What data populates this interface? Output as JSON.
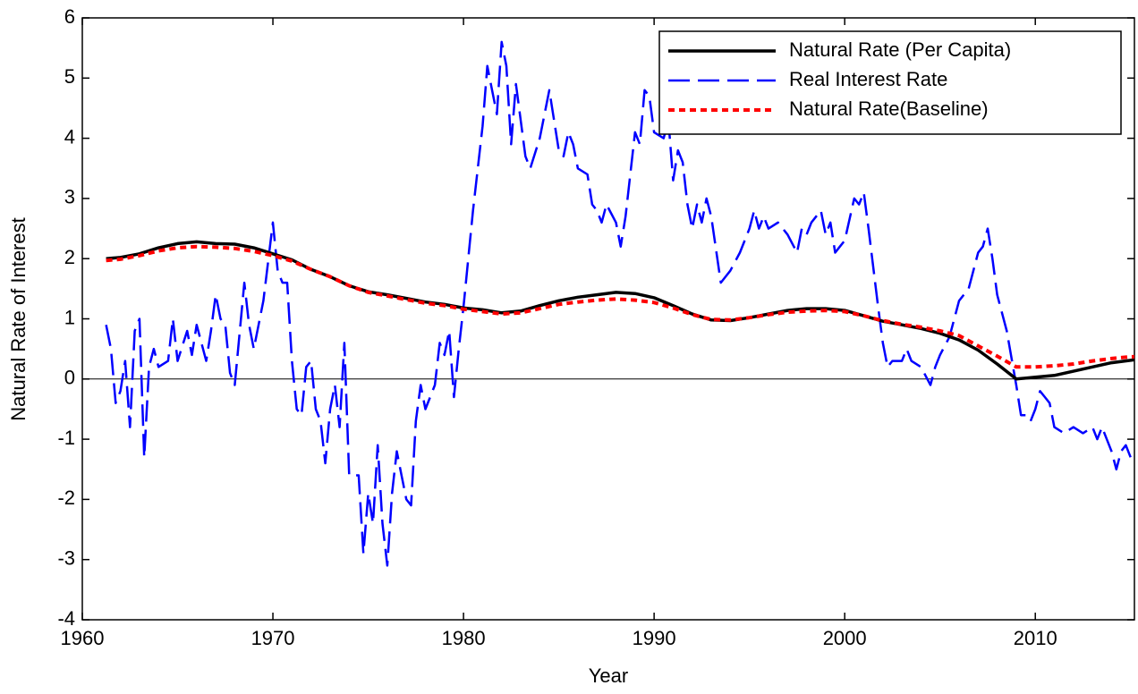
{
  "chart_data": {
    "type": "line",
    "xlabel": "Year",
    "ylabel": "Natural Rate of Interest",
    "xlim": [
      1960,
      2015.2
    ],
    "ylim": [
      -4,
      6
    ],
    "xticks": [
      1960,
      1970,
      1980,
      1990,
      2000,
      2010
    ],
    "yticks": [
      -4,
      -3,
      -2,
      -1,
      0,
      1,
      2,
      3,
      4,
      5,
      6
    ],
    "hline": 0,
    "legend": "upper right",
    "series": [
      {
        "name": "Natural Rate (Per Capita)",
        "color": "#000000",
        "style": "solid",
        "x": [
          1961.25,
          1962,
          1963,
          1964,
          1965,
          1966,
          1967,
          1968,
          1969,
          1970,
          1971,
          1972,
          1973,
          1974,
          1975,
          1976,
          1977,
          1978,
          1979,
          1980,
          1981,
          1982,
          1983,
          1984,
          1985,
          1986,
          1987,
          1988,
          1989,
          1990,
          1991,
          1992,
          1993,
          1994,
          1995,
          1996,
          1997,
          1998,
          1999,
          2000,
          2001,
          2002,
          2003,
          2004,
          2005,
          2006,
          2007,
          2008,
          2009,
          2010,
          2011,
          2012,
          2013,
          2014,
          2015,
          2015.2
        ],
        "values": [
          2.0,
          2.02,
          2.08,
          2.18,
          2.25,
          2.28,
          2.25,
          2.24,
          2.18,
          2.08,
          1.98,
          1.82,
          1.7,
          1.55,
          1.45,
          1.4,
          1.34,
          1.28,
          1.24,
          1.18,
          1.15,
          1.1,
          1.13,
          1.22,
          1.3,
          1.36,
          1.4,
          1.44,
          1.42,
          1.35,
          1.22,
          1.08,
          0.98,
          0.97,
          1.02,
          1.08,
          1.14,
          1.17,
          1.17,
          1.14,
          1.05,
          0.96,
          0.9,
          0.84,
          0.76,
          0.65,
          0.48,
          0.25,
          0.0,
          0.03,
          0.06,
          0.13,
          0.2,
          0.27,
          0.31,
          0.32
        ]
      },
      {
        "name": "Real Interest Rate",
        "color": "#0000ff",
        "style": "dashed",
        "x": [
          1961.25,
          1961.5,
          1961.75,
          1962,
          1962.25,
          1962.5,
          1962.75,
          1963,
          1963.25,
          1963.5,
          1963.75,
          1964,
          1964.5,
          1964.75,
          1965,
          1965.5,
          1965.75,
          1966,
          1966.5,
          1966.75,
          1967,
          1967.25,
          1967.5,
          1967.75,
          1968,
          1968.5,
          1968.75,
          1969,
          1969.5,
          1970,
          1970.25,
          1970.5,
          1970.75,
          1971,
          1971.25,
          1971.5,
          1971.75,
          1972,
          1972.25,
          1972.5,
          1972.75,
          1973,
          1973.25,
          1973.5,
          1973.75,
          1974,
          1974.5,
          1974.75,
          1975,
          1975.25,
          1975.5,
          1975.75,
          1976,
          1976.25,
          1976.5,
          1976.75,
          1977,
          1977.25,
          1977.5,
          1977.75,
          1978,
          1978.5,
          1978.75,
          1979,
          1979.25,
          1979.5,
          1979.75,
          1980,
          1980.5,
          1981,
          1981.25,
          1981.5,
          1981.75,
          1982,
          1982.25,
          1982.5,
          1982.75,
          1983,
          1983.25,
          1983.5,
          1984,
          1984.5,
          1985,
          1985.25,
          1985.5,
          1985.75,
          1986,
          1986.5,
          1986.75,
          1987,
          1987.25,
          1987.5,
          1988,
          1988.25,
          1988.5,
          1989,
          1989.25,
          1989.5,
          1989.75,
          1990,
          1990.5,
          1990.75,
          1991,
          1991.25,
          1991.5,
          1991.75,
          1992,
          1992.25,
          1992.5,
          1992.75,
          1993,
          1993.5,
          1993.75,
          1994,
          1994.5,
          1995,
          1995.25,
          1995.5,
          1995.75,
          1996,
          1996.5,
          1997,
          1997.5,
          1997.75,
          1998,
          1998.25,
          1998.75,
          1999,
          1999.25,
          1999.5,
          1999.75,
          2000,
          2000.5,
          2000.75,
          2001,
          2001.25,
          2001.75,
          2002,
          2002.25,
          2002.5,
          2003,
          2003.25,
          2003.5,
          2004,
          2004.5,
          2004.75,
          2005,
          2005.5,
          2006,
          2006.5,
          2007,
          2007.25,
          2007.5,
          2007.75,
          2008,
          2008.5,
          2009,
          2009.25,
          2009.5,
          2009.75,
          2010,
          2010.25,
          2010.5,
          2010.75,
          2011,
          2011.5,
          2012,
          2012.5,
          2013,
          2013.25,
          2013.5,
          2014,
          2014.25,
          2014.5,
          2014.75,
          2015
        ],
        "values": [
          0.9,
          0.5,
          -0.4,
          -0.2,
          0.3,
          -0.8,
          0.8,
          1.0,
          -1.3,
          0.2,
          0.5,
          0.2,
          0.3,
          1.0,
          0.3,
          0.8,
          0.4,
          0.9,
          0.3,
          0.8,
          1.4,
          1.0,
          0.9,
          0.1,
          -0.1,
          1.6,
          0.9,
          0.5,
          1.3,
          2.6,
          1.8,
          1.6,
          1.6,
          0.3,
          -0.5,
          -0.6,
          0.2,
          0.3,
          -0.5,
          -0.7,
          -1.4,
          -0.5,
          -0.1,
          -0.8,
          0.6,
          -1.6,
          -1.6,
          -2.9,
          -1.9,
          -2.4,
          -1.1,
          -2.4,
          -3.1,
          -1.9,
          -1.2,
          -1.6,
          -2.0,
          -2.1,
          -0.7,
          -0.1,
          -0.5,
          -0.1,
          0.6,
          0.4,
          0.8,
          -0.3,
          0.5,
          1.2,
          2.8,
          4.2,
          5.2,
          4.8,
          4.4,
          5.6,
          5.2,
          3.9,
          4.9,
          4.3,
          3.7,
          3.5,
          4.0,
          4.8,
          3.8,
          3.7,
          4.1,
          3.9,
          3.5,
          3.4,
          2.9,
          2.8,
          2.6,
          2.9,
          2.6,
          2.2,
          2.7,
          4.1,
          3.9,
          4.8,
          4.7,
          4.1,
          4.0,
          4.3,
          3.3,
          3.8,
          3.6,
          2.9,
          2.5,
          2.9,
          2.6,
          3.0,
          2.7,
          1.6,
          1.7,
          1.8,
          2.1,
          2.5,
          2.8,
          2.5,
          2.7,
          2.5,
          2.6,
          2.4,
          2.1,
          2.5,
          2.4,
          2.6,
          2.8,
          2.4,
          2.6,
          2.1,
          2.2,
          2.3,
          3.0,
          2.9,
          3.1,
          2.5,
          1.2,
          0.6,
          0.2,
          0.3,
          0.3,
          0.5,
          0.3,
          0.2,
          -0.1,
          0.2,
          0.4,
          0.7,
          1.3,
          1.5,
          2.1,
          2.2,
          2.5,
          2.0,
          1.4,
          0.8,
          -0.1,
          -0.6,
          -0.6,
          -0.7,
          -0.5,
          -0.2,
          -0.3,
          -0.4,
          -0.8,
          -0.9,
          -0.8,
          -0.9,
          -0.8,
          -1.0,
          -0.8,
          -1.2,
          -1.5,
          -1.2,
          -1.1,
          -1.3
        ]
      },
      {
        "name": "Natural Rate(Baseline)",
        "color": "#ff0000",
        "style": "dotted",
        "x": [
          1961.25,
          1962,
          1963,
          1964,
          1965,
          1966,
          1967,
          1968,
          1969,
          1970,
          1971,
          1972,
          1973,
          1974,
          1975,
          1976,
          1977,
          1978,
          1979,
          1980,
          1981,
          1982,
          1983,
          1984,
          1985,
          1986,
          1987,
          1988,
          1989,
          1990,
          1991,
          1992,
          1993,
          1994,
          1995,
          1996,
          1997,
          1998,
          1999,
          2000,
          2001,
          2002,
          2003,
          2004,
          2005,
          2006,
          2007,
          2008,
          2009,
          2010,
          2011,
          2012,
          2013,
          2014,
          2015,
          2015.2
        ],
        "values": [
          1.97,
          1.99,
          2.05,
          2.13,
          2.18,
          2.2,
          2.19,
          2.17,
          2.12,
          2.05,
          1.96,
          1.82,
          1.7,
          1.55,
          1.44,
          1.38,
          1.32,
          1.26,
          1.22,
          1.16,
          1.12,
          1.08,
          1.1,
          1.17,
          1.24,
          1.28,
          1.31,
          1.33,
          1.31,
          1.27,
          1.18,
          1.07,
          0.99,
          0.98,
          1.02,
          1.07,
          1.11,
          1.13,
          1.14,
          1.12,
          1.05,
          0.97,
          0.91,
          0.86,
          0.8,
          0.72,
          0.55,
          0.38,
          0.2,
          0.2,
          0.22,
          0.25,
          0.3,
          0.34,
          0.37,
          0.37
        ]
      }
    ]
  }
}
